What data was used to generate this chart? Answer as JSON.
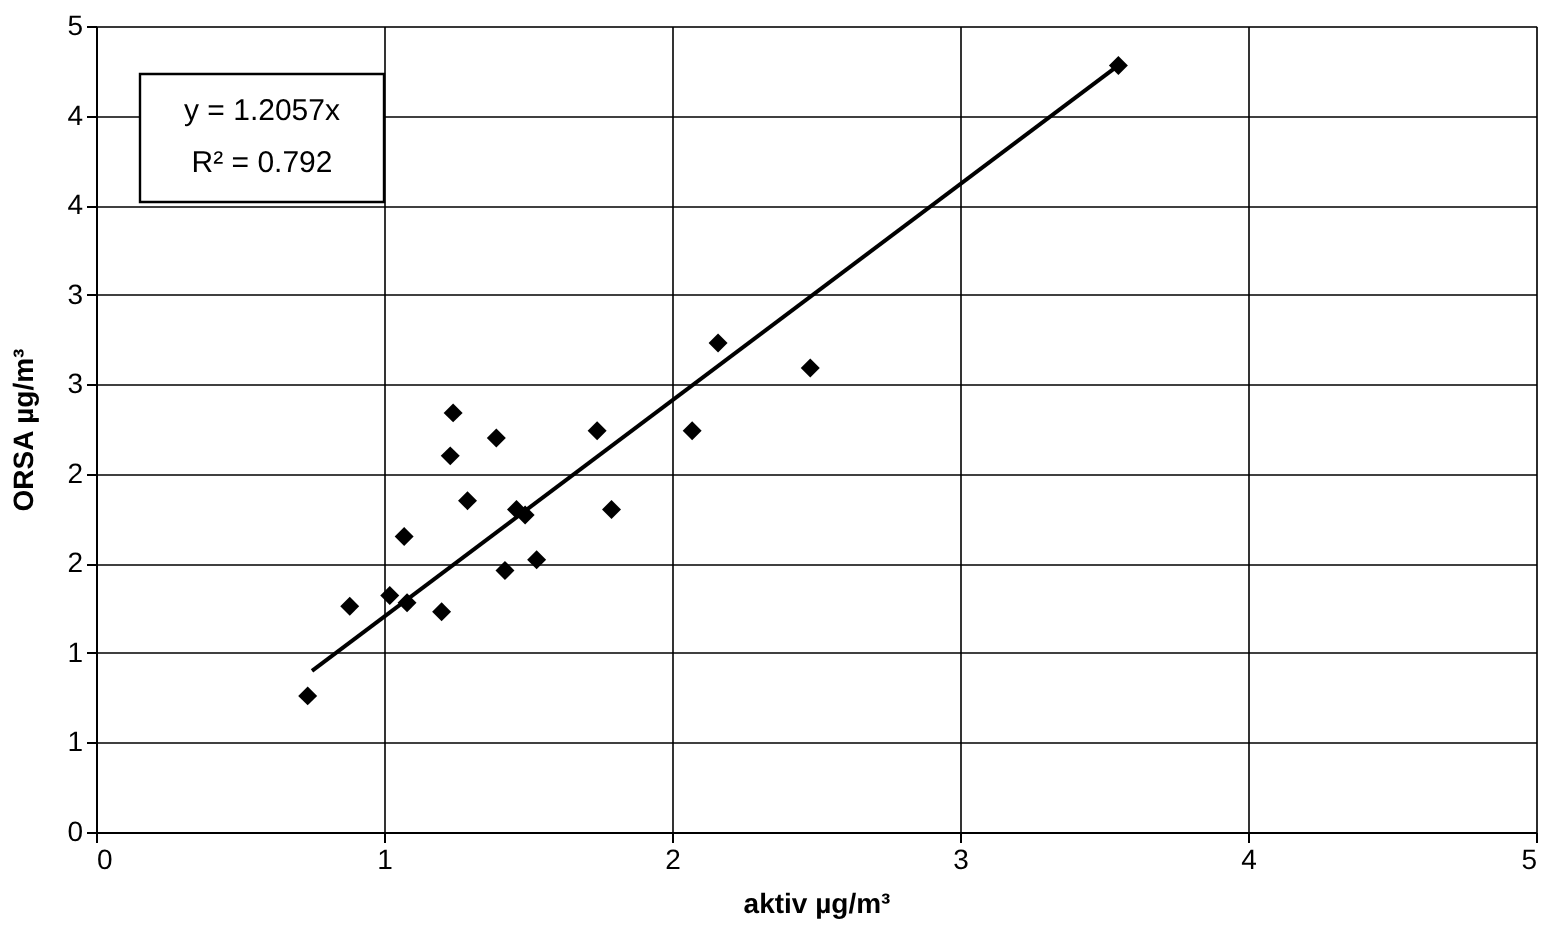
{
  "chart_data": {
    "type": "scatter",
    "xlabel": "aktiv µg/m³",
    "ylabel": "ORSA µg/m³",
    "series": [
      {
        "color": "#000000",
        "marker": "diamond",
        "x": [
          0.735,
          0.881,
          1.02,
          1.08,
          1.07,
          1.2,
          1.23,
          1.24,
          1.29,
          1.39,
          1.42,
          1.46,
          1.49,
          1.53,
          1.74,
          1.79,
          2.07,
          2.16,
          2.48,
          3.55
        ],
        "values": [
          0.76,
          1.26,
          1.32,
          1.28,
          1.65,
          1.23,
          2.1,
          2.34,
          1.85,
          2.2,
          1.46,
          1.8,
          1.77,
          1.52,
          2.24,
          1.8,
          2.24,
          2.73,
          2.59,
          4.28
        ]
      },
      {
        "type": "line",
        "color": "#000000",
        "line_style": "solid",
        "x": [
          0.75,
          3.55
        ],
        "values": [
          0.9,
          4.28
        ]
      }
    ],
    "annotations": [
      "y = 1.2057x",
      "R² = 0.792"
    ],
    "xlim": [
      0,
      5
    ],
    "xticks": [
      0,
      1,
      2,
      3,
      4,
      5
    ],
    "ylim": [
      0,
      4.5
    ],
    "yticks": [
      0,
      {
        "value": 0.5,
        "label": "1"
      },
      1,
      {
        "value": 1.5,
        "label": "2"
      },
      2,
      {
        "value": 2.5,
        "label": "3"
      },
      3,
      {
        "value": 3.5,
        "label": "4"
      },
      4,
      {
        "value": 4.5,
        "label": "5"
      }
    ],
    "grid": true
  }
}
